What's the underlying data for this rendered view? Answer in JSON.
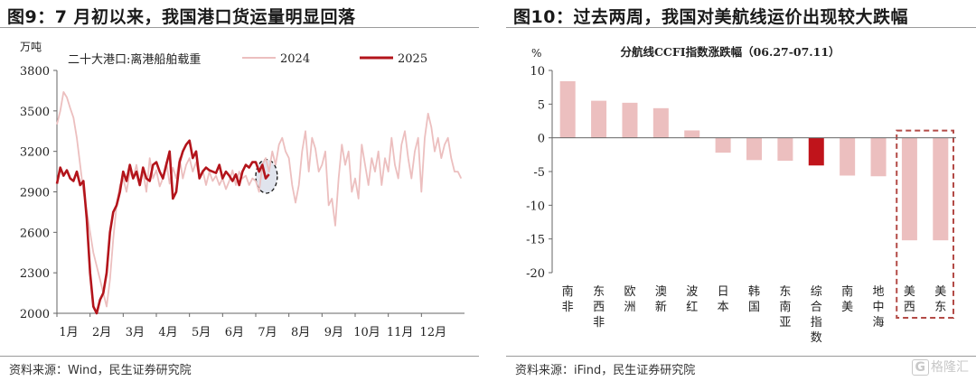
{
  "left": {
    "title": "图9：7 月初以来，我国港口货运量明显回落",
    "source": "资料来源：Wind，民生证券研究院"
  },
  "right": {
    "title": "图10：过去两周，我国对美航线运价出现较大跌幅",
    "source": "资料来源：iFind，民生证券研究院"
  },
  "watermark": {
    "icon": "G",
    "text": "格隆汇"
  },
  "chart_data": [
    {
      "type": "line",
      "title": "",
      "subtitle": "二十大港口:离港船舶载重",
      "ylabel": "万吨",
      "ylim": [
        2000,
        3800
      ],
      "yticks": [
        2000,
        2300,
        2600,
        2900,
        3200,
        3500,
        3800
      ],
      "xticks": [
        "1月",
        "2月",
        "3月",
        "4月",
        "5月",
        "6月",
        "7月",
        "8月",
        "9月",
        "10月",
        "11月",
        "12月"
      ],
      "xlim": [
        1,
        13.3
      ],
      "grid": false,
      "legend": "top-center",
      "highlight": {
        "shape": "ellipse",
        "x_range": [
          7.0,
          7.65
        ],
        "y_range": [
          2890,
          3140
        ]
      },
      "colors": {
        "2024": "#ecbfbf",
        "2025": "#b3141b"
      },
      "series": [
        {
          "name": "2024",
          "x": [
            1.0,
            1.1,
            1.2,
            1.3,
            1.4,
            1.5,
            1.6,
            1.7,
            1.8,
            1.9,
            2.0,
            2.1,
            2.2,
            2.3,
            2.4,
            2.5,
            2.6,
            2.7,
            2.8,
            2.9,
            3.0,
            3.1,
            3.2,
            3.3,
            3.4,
            3.5,
            3.6,
            3.7,
            3.8,
            3.9,
            4.0,
            4.1,
            4.2,
            4.3,
            4.4,
            4.5,
            4.6,
            4.7,
            4.8,
            4.9,
            5.0,
            5.1,
            5.2,
            5.3,
            5.4,
            5.5,
            5.6,
            5.7,
            5.8,
            5.9,
            6.0,
            6.1,
            6.2,
            6.3,
            6.4,
            6.5,
            6.6,
            6.7,
            6.8,
            6.9,
            7.0,
            7.1,
            7.2,
            7.3,
            7.4,
            7.5,
            7.6,
            7.7,
            7.8,
            7.9,
            8.0,
            8.1,
            8.2,
            8.3,
            8.4,
            8.5,
            8.6,
            8.7,
            8.8,
            8.9,
            9.0,
            9.1,
            9.2,
            9.3,
            9.4,
            9.5,
            9.6,
            9.7,
            9.8,
            9.9,
            10.0,
            10.1,
            10.2,
            10.3,
            10.4,
            10.5,
            10.6,
            10.7,
            10.8,
            10.9,
            11.0,
            11.1,
            11.2,
            11.3,
            11.4,
            11.5,
            11.6,
            11.7,
            11.8,
            11.9,
            12.0,
            12.1,
            12.2,
            12.3,
            12.4,
            12.5,
            12.6,
            12.7,
            12.8,
            12.9,
            13.0,
            13.1,
            13.2
          ],
          "values": [
            3400,
            3500,
            3640,
            3600,
            3520,
            3450,
            3300,
            3100,
            2900,
            2760,
            2600,
            2450,
            2350,
            2250,
            2150,
            2050,
            2250,
            2550,
            2800,
            2950,
            3000,
            2900,
            3050,
            3000,
            3100,
            2960,
            3050,
            2900,
            3150,
            3000,
            3060,
            2940,
            3000,
            3120,
            2960,
            3080,
            3000,
            3150,
            3000,
            3100,
            3150,
            3050,
            3120,
            3000,
            3060,
            2950,
            3050,
            2980,
            3020,
            2950,
            3000,
            2920,
            2980,
            3060,
            2950,
            3050,
            3000,
            3020,
            2950,
            3000,
            2980,
            2900,
            3100,
            3150,
            3050,
            3200,
            3100,
            3250,
            3300,
            3200,
            3150,
            2950,
            2820,
            2950,
            3200,
            3350,
            3050,
            3300,
            3220,
            3050,
            3100,
            3200,
            2800,
            2850,
            2650,
            3000,
            3250,
            3100,
            3200,
            2900,
            3000,
            2850,
            3250,
            3100,
            2950,
            3150,
            3050,
            3200,
            2950,
            3150,
            3050,
            3300,
            3100,
            3000,
            3250,
            3350,
            3150,
            3000,
            3200,
            3300,
            2900,
            3300,
            3480,
            3380,
            3200,
            3300,
            3150,
            3250,
            3300,
            3150,
            3050,
            3050,
            3000
          ]
        },
        {
          "name": "2025",
          "x": [
            1.0,
            1.1,
            1.2,
            1.3,
            1.4,
            1.5,
            1.6,
            1.7,
            1.8,
            1.9,
            2.0,
            2.1,
            2.2,
            2.3,
            2.4,
            2.5,
            2.6,
            2.7,
            2.8,
            2.9,
            3.0,
            3.1,
            3.2,
            3.3,
            3.4,
            3.5,
            3.6,
            3.7,
            3.8,
            3.9,
            4.0,
            4.1,
            4.2,
            4.3,
            4.4,
            4.5,
            4.6,
            4.7,
            4.8,
            4.9,
            5.0,
            5.1,
            5.2,
            5.3,
            5.4,
            5.5,
            5.6,
            5.7,
            5.8,
            5.9,
            6.0,
            6.1,
            6.2,
            6.3,
            6.4,
            6.5,
            6.6,
            6.7,
            6.8,
            6.9,
            7.0,
            7.1,
            7.2,
            7.3,
            7.4
          ],
          "values": [
            2960,
            3080,
            3020,
            3060,
            3000,
            2980,
            3050,
            2950,
            2980,
            2700,
            2300,
            2050,
            2000,
            2100,
            2150,
            2300,
            2600,
            2750,
            2800,
            2900,
            3050,
            2980,
            3100,
            3000,
            3050,
            2950,
            3080,
            3000,
            2980,
            3100,
            3120,
            3050,
            3000,
            3100,
            3200,
            2850,
            2900,
            3120,
            3200,
            3250,
            3280,
            3150,
            3200,
            3000,
            3050,
            3080,
            3060,
            3050,
            3040,
            3100,
            3000,
            3050,
            3020,
            2980,
            3030,
            2950,
            3050,
            3100,
            3080,
            3120,
            3120,
            3050,
            3100,
            3000,
            3030
          ]
        }
      ]
    },
    {
      "type": "bar",
      "title": "分航线CCFI指数涨跌幅（06.27-07.11）",
      "ylabel": "%",
      "ylim": [
        -20,
        10
      ],
      "yticks": [
        10,
        5,
        0,
        -5,
        -10,
        -15,
        -20
      ],
      "grid": false,
      "categories": [
        "南非",
        "东西非",
        "欧洲",
        "澳新",
        "波红",
        "日本",
        "韩国",
        "东南亚",
        "综合指数",
        "南美",
        "地中海",
        "美西",
        "美东"
      ],
      "values": [
        8.4,
        5.5,
        5.2,
        4.4,
        1.1,
        -2.2,
        -3.3,
        -3.4,
        -4.1,
        -5.6,
        -5.7,
        -15.2,
        -15.2
      ],
      "highlight_category": "综合指数",
      "highlight_box_categories": [
        "美西",
        "美东"
      ],
      "colors": {
        "bar": "#ecbfbf",
        "highlight": "#c0141b",
        "box": "#b34a46"
      }
    }
  ]
}
